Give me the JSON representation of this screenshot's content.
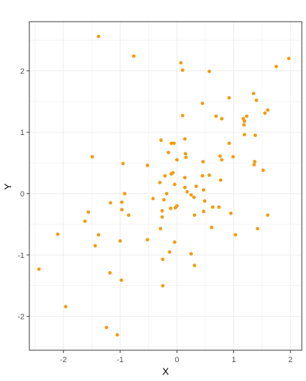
{
  "chart_data": {
    "type": "scatter",
    "title": "",
    "xlabel": "X",
    "ylabel": "Y",
    "xlim": [
      -2.6,
      2.2
    ],
    "ylim": [
      -2.55,
      2.8
    ],
    "x_ticks": [
      -2,
      -1,
      0,
      1,
      2
    ],
    "y_ticks": [
      -2,
      -1,
      0,
      1,
      2
    ],
    "x_tick_labels": [
      "-2",
      "-1",
      "0",
      "1",
      "2"
    ],
    "y_tick_labels": [
      "-2",
      "-1",
      "0",
      "1",
      "2"
    ],
    "grid": true,
    "point_color": "#f39c12",
    "gridline_color": "#ebebeb",
    "panel_border_color": "#333333",
    "points": [
      [
        -1.38,
        2.56
      ],
      [
        -0.76,
        2.24
      ],
      [
        0.07,
        2.13
      ],
      [
        0.1,
        2.01
      ],
      [
        0.57,
        1.99
      ],
      [
        1.97,
        2.2
      ],
      [
        1.75,
        2.07
      ],
      [
        1.35,
        1.63
      ],
      [
        0.92,
        1.56
      ],
      [
        0.45,
        1.47
      ],
      [
        1.4,
        1.52
      ],
      [
        0.1,
        1.27
      ],
      [
        0.69,
        1.26
      ],
      [
        1.23,
        1.26
      ],
      [
        1.6,
        1.36
      ],
      [
        1.55,
        1.31
      ],
      [
        1.17,
        1.22
      ],
      [
        0.79,
        1.22
      ],
      [
        1.19,
        1.18
      ],
      [
        1.18,
        1.12
      ],
      [
        1.19,
        0.96
      ],
      [
        1.38,
        0.95
      ],
      [
        0.14,
        0.89
      ],
      [
        -0.28,
        0.87
      ],
      [
        -0.1,
        0.82
      ],
      [
        -0.05,
        0.82
      ],
      [
        0.92,
        0.82
      ],
      [
        -0.15,
        0.67
      ],
      [
        0.15,
        0.65
      ],
      [
        0.76,
        0.61
      ],
      [
        0.99,
        0.6
      ],
      [
        0.16,
        0.59
      ],
      [
        0.0,
        0.55
      ],
      [
        0.79,
        0.55
      ],
      [
        0.46,
        0.52
      ],
      [
        1.37,
        0.52
      ],
      [
        1.36,
        0.47
      ],
      [
        -0.95,
        0.49
      ],
      [
        -1.49,
        0.6
      ],
      [
        -0.52,
        0.46
      ],
      [
        1.52,
        0.38
      ],
      [
        -0.07,
        0.34
      ],
      [
        -0.1,
        0.32
      ],
      [
        0.57,
        0.3
      ],
      [
        0.45,
        0.29
      ],
      [
        -0.21,
        0.29
      ],
      [
        0.14,
        0.26
      ],
      [
        0.77,
        0.22
      ],
      [
        -0.3,
        0.18
      ],
      [
        -0.04,
        0.15
      ],
      [
        0.34,
        0.12
      ],
      [
        0.14,
        0.1
      ],
      [
        0.47,
        0.06
      ],
      [
        0.18,
        0.03
      ],
      [
        -0.92,
        0.0
      ],
      [
        -0.18,
        0.0
      ],
      [
        0.25,
        -0.02
      ],
      [
        0.3,
        -0.06
      ],
      [
        -0.42,
        -0.08
      ],
      [
        -0.23,
        -0.1
      ],
      [
        0.49,
        -0.12
      ],
      [
        -1.17,
        -0.15
      ],
      [
        -0.97,
        -0.14
      ],
      [
        -0.0,
        -0.2
      ],
      [
        0.63,
        -0.22
      ],
      [
        0.74,
        -0.22
      ],
      [
        -0.03,
        -0.23
      ],
      [
        -0.11,
        -0.24
      ],
      [
        -0.97,
        -0.26
      ],
      [
        -0.26,
        -0.28
      ],
      [
        0.47,
        -0.29
      ],
      [
        -1.56,
        -0.3
      ],
      [
        0.95,
        -0.32
      ],
      [
        -0.85,
        -0.35
      ],
      [
        0.31,
        -0.35
      ],
      [
        -0.26,
        -0.38
      ],
      [
        1.6,
        -0.35
      ],
      [
        -1.62,
        -0.45
      ],
      [
        0.61,
        -0.55
      ],
      [
        -0.29,
        -0.57
      ],
      [
        1.42,
        -0.57
      ],
      [
        -2.1,
        -0.66
      ],
      [
        -1.38,
        -0.67
      ],
      [
        1.03,
        -0.67
      ],
      [
        -0.52,
        -0.75
      ],
      [
        -1.0,
        -0.77
      ],
      [
        -0.04,
        -0.79
      ],
      [
        -1.44,
        -0.85
      ],
      [
        -0.13,
        -0.95
      ],
      [
        0.25,
        -0.98
      ],
      [
        -0.25,
        -1.07
      ],
      [
        0.31,
        -1.17
      ],
      [
        -2.43,
        -1.23
      ],
      [
        -1.18,
        -1.29
      ],
      [
        -0.98,
        -1.41
      ],
      [
        -0.25,
        -1.5
      ],
      [
        -1.96,
        -1.84
      ],
      [
        -1.24,
        -2.18
      ],
      [
        -1.05,
        -2.3
      ]
    ]
  }
}
